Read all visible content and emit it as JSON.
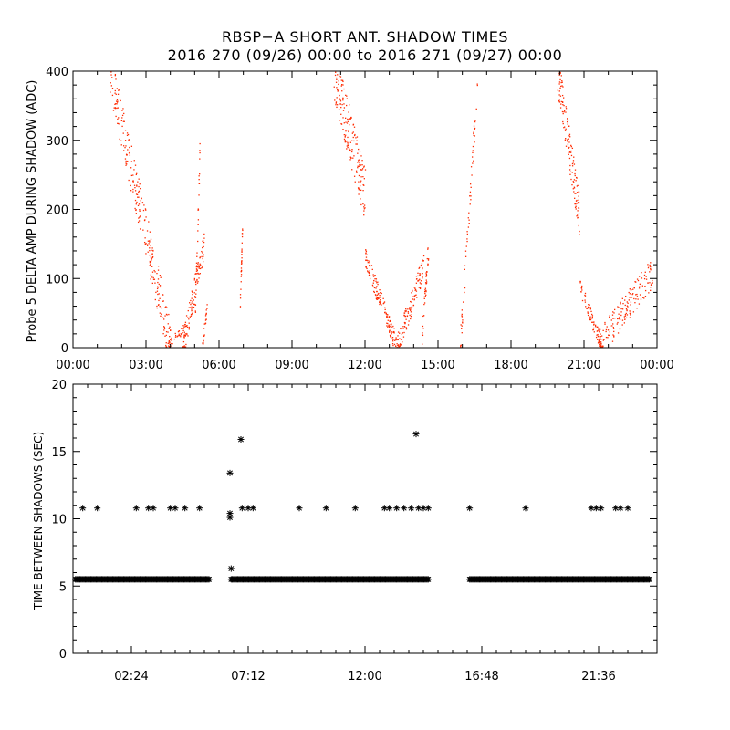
{
  "title_line1": "RBSP−A SHORT ANT. SHADOW TIMES",
  "title_line2": "2016 270 (09/26) 00:00 to 2016 271 (09/27) 00:00",
  "colors": {
    "top_points": "#ff2a00",
    "bottom_points": "#000000",
    "axes": "#000000"
  },
  "chart_data": [
    {
      "type": "scatter",
      "title": "RBSP−A SHORT ANT. SHADOW TIMES",
      "xlabel": "",
      "ylabel": "Probe 5 DELTA AMP DURING SHADOW (ADC)",
      "xlim": [
        0,
        24
      ],
      "ylim": [
        0,
        400
      ],
      "x_unit": "hours",
      "xticks": [
        "00:00",
        "03:00",
        "06:00",
        "09:00",
        "12:00",
        "15:00",
        "18:00",
        "21:00",
        "00:00"
      ],
      "yticks": [
        "0",
        "100",
        "200",
        "300",
        "400"
      ],
      "series": [
        {
          "color": "#ff2a00",
          "segments": [
            {
              "x0": 1.5,
              "x1": 4.0,
              "y0": 400,
              "y1": 2,
              "n": 260,
              "spread": 35
            },
            {
              "x0": 3.8,
              "x1": 4.6,
              "y0": 2,
              "y1": 30,
              "n": 40,
              "spread": 6
            },
            {
              "x0": 4.5,
              "x1": 5.4,
              "y0": 3,
              "y1": 155,
              "n": 110,
              "spread": 20
            },
            {
              "x0": 5.3,
              "x1": 5.5,
              "y0": 5,
              "y1": 60,
              "n": 25,
              "spread": 8
            },
            {
              "x0": 5.0,
              "x1": 5.2,
              "y0": 40,
              "y1": 290,
              "n": 30,
              "spread": 15
            },
            {
              "x0": 6.85,
              "x1": 6.95,
              "y0": 60,
              "y1": 180,
              "n": 30,
              "spread": 10
            },
            {
              "x0": 10.7,
              "x1": 12.0,
              "y0": 400,
              "y1": 220,
              "n": 190,
              "spread": 40
            },
            {
              "x0": 12.0,
              "x1": 13.3,
              "y0": 130,
              "y1": 2,
              "n": 150,
              "spread": 15
            },
            {
              "x0": 13.3,
              "x1": 14.4,
              "y0": 2,
              "y1": 120,
              "n": 120,
              "spread": 18
            },
            {
              "x0": 14.3,
              "x1": 14.6,
              "y0": 5,
              "y1": 150,
              "n": 40,
              "spread": 15
            },
            {
              "x0": 15.9,
              "x1": 16.6,
              "y0": 5,
              "y1": 380,
              "n": 60,
              "spread": 20
            },
            {
              "x0": 19.9,
              "x1": 20.8,
              "y0": 400,
              "y1": 190,
              "n": 140,
              "spread": 30
            },
            {
              "x0": 20.8,
              "x1": 21.7,
              "y0": 90,
              "y1": 5,
              "n": 90,
              "spread": 12
            },
            {
              "x0": 21.6,
              "x1": 23.8,
              "y0": 5,
              "y1": 110,
              "n": 160,
              "spread": 22
            }
          ]
        }
      ]
    },
    {
      "type": "scatter",
      "xlabel": "",
      "ylabel": "TIME BETWEEN SHADOWS (SEC)",
      "xlim": [
        0,
        24
      ],
      "ylim": [
        0,
        20
      ],
      "x_unit": "hours",
      "xticks": [
        {
          "x": 2.4,
          "label": "02:24"
        },
        {
          "x": 7.2,
          "label": "07:12"
        },
        {
          "x": 12.0,
          "label": "12:00"
        },
        {
          "x": 16.8,
          "label": "16:48"
        },
        {
          "x": 21.6,
          "label": "21:36"
        }
      ],
      "xminor": [
        0.6,
        1.2,
        1.8,
        3.0,
        3.6,
        4.2,
        4.8,
        5.4,
        6.0,
        6.6,
        7.8,
        8.4,
        9.0,
        9.6,
        10.2,
        10.8,
        11.4,
        12.6,
        13.2,
        13.8,
        14.4,
        15.0,
        15.6,
        16.2,
        17.4,
        18.0,
        18.6,
        19.2,
        19.8,
        20.4,
        21.0,
        22.2,
        22.8,
        23.4
      ],
      "yticks": [
        "0",
        "5",
        "10",
        "15",
        "20"
      ],
      "baseline": {
        "y": 5.5,
        "ranges": [
          [
            0.1,
            5.6
          ],
          [
            6.5,
            14.6
          ],
          [
            16.3,
            23.7
          ]
        ]
      },
      "points": [
        {
          "x": 0.4,
          "y": 10.8
        },
        {
          "x": 1.0,
          "y": 10.8
        },
        {
          "x": 2.6,
          "y": 10.8
        },
        {
          "x": 3.1,
          "y": 10.8
        },
        {
          "x": 3.3,
          "y": 10.8
        },
        {
          "x": 4.0,
          "y": 10.8
        },
        {
          "x": 4.2,
          "y": 10.8
        },
        {
          "x": 4.6,
          "y": 10.8
        },
        {
          "x": 5.2,
          "y": 10.8
        },
        {
          "x": 6.45,
          "y": 10.4
        },
        {
          "x": 6.45,
          "y": 10.1
        },
        {
          "x": 6.45,
          "y": 13.4
        },
        {
          "x": 6.5,
          "y": 6.3
        },
        {
          "x": 6.9,
          "y": 15.9
        },
        {
          "x": 6.95,
          "y": 10.8
        },
        {
          "x": 7.2,
          "y": 10.8
        },
        {
          "x": 7.4,
          "y": 10.8
        },
        {
          "x": 9.3,
          "y": 10.8
        },
        {
          "x": 10.4,
          "y": 10.8
        },
        {
          "x": 11.6,
          "y": 10.8
        },
        {
          "x": 12.8,
          "y": 10.8
        },
        {
          "x": 13.0,
          "y": 10.8
        },
        {
          "x": 13.3,
          "y": 10.8
        },
        {
          "x": 13.6,
          "y": 10.8
        },
        {
          "x": 13.9,
          "y": 10.8
        },
        {
          "x": 14.1,
          "y": 16.3
        },
        {
          "x": 14.2,
          "y": 10.8
        },
        {
          "x": 14.4,
          "y": 10.8
        },
        {
          "x": 14.6,
          "y": 10.8
        },
        {
          "x": 16.3,
          "y": 10.8
        },
        {
          "x": 18.6,
          "y": 10.8
        },
        {
          "x": 21.3,
          "y": 10.8
        },
        {
          "x": 21.5,
          "y": 10.8
        },
        {
          "x": 21.7,
          "y": 10.8
        },
        {
          "x": 22.3,
          "y": 10.8
        },
        {
          "x": 22.5,
          "y": 10.8
        },
        {
          "x": 22.8,
          "y": 10.8
        }
      ]
    }
  ]
}
